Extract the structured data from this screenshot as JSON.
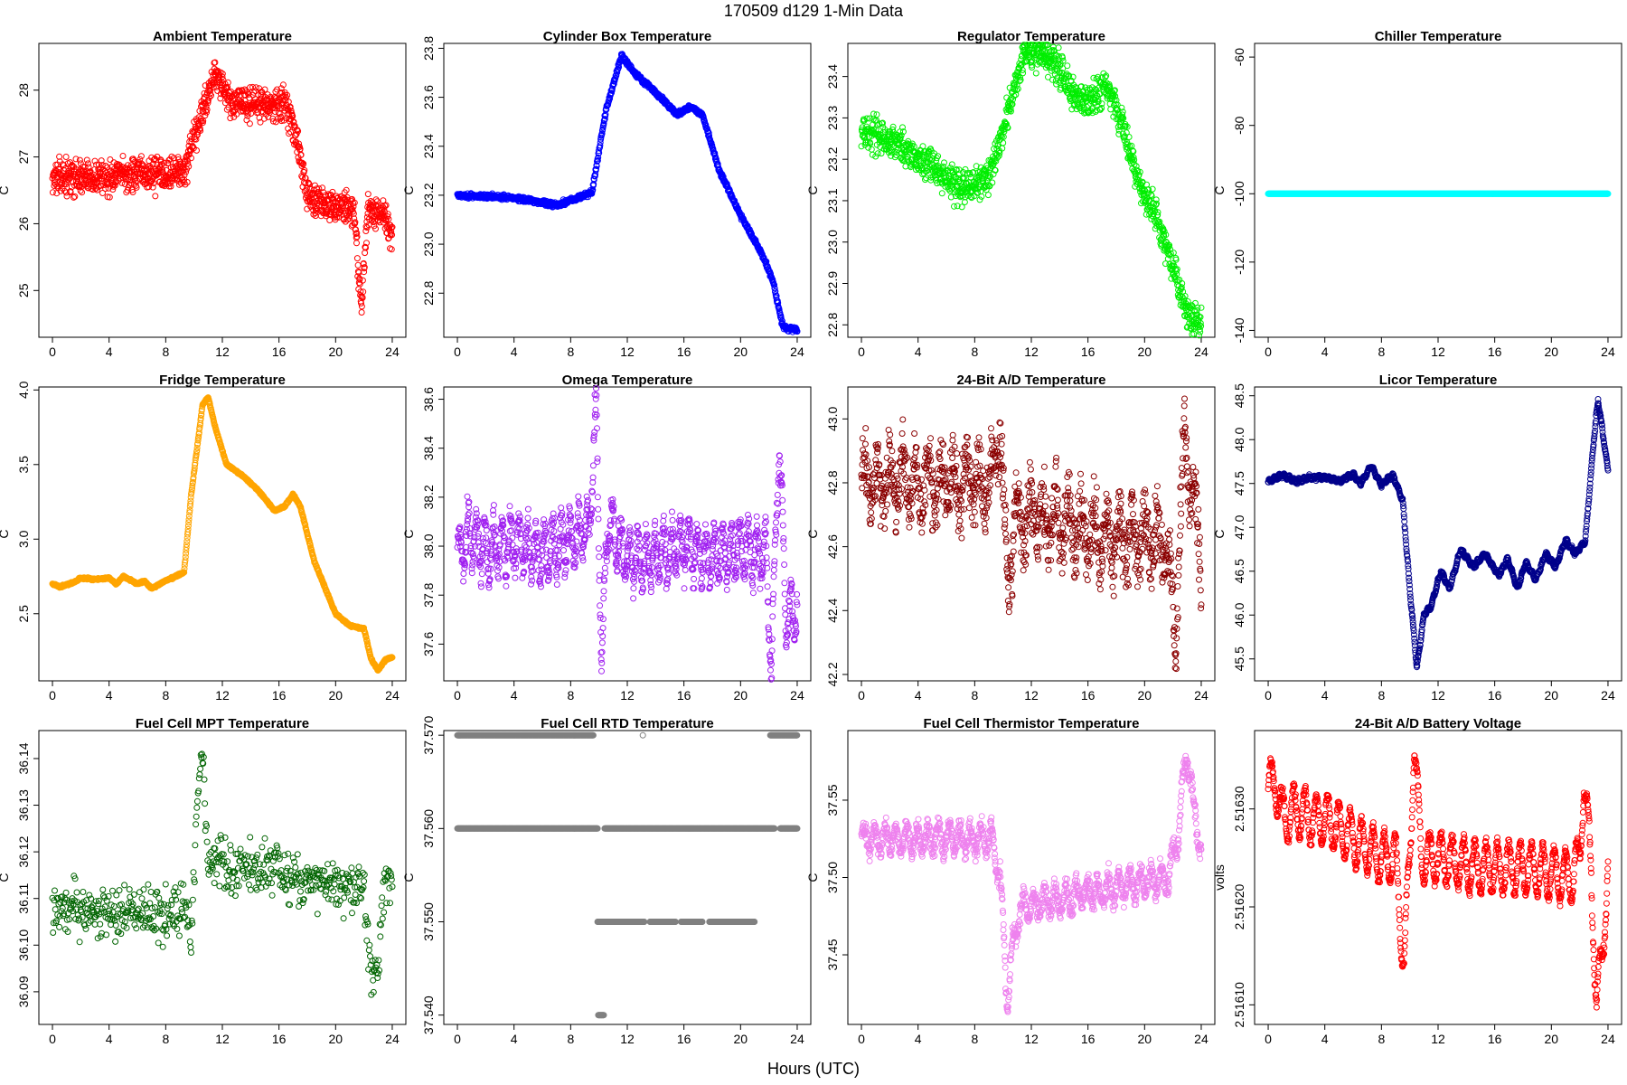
{
  "figure": {
    "title": "170509   d129   1-Min Data",
    "xlabel": "Hours (UTC)"
  },
  "chart_data": [
    {
      "type": "scatter",
      "title": "Ambient Temperature",
      "ylabel": "C",
      "color": "#ff0000",
      "xlim": [
        -0.96,
        24.96
      ],
      "ylim": [
        24.3,
        28.7
      ],
      "xticks": [
        0,
        4,
        8,
        12,
        16,
        20,
        24
      ],
      "yticks": [
        25,
        26,
        27,
        28
      ],
      "ytick_labels": [
        "25",
        "26",
        "27",
        "28"
      ],
      "anchors": [
        [
          0,
          26.7
        ],
        [
          4,
          26.7
        ],
        [
          9.4,
          26.8
        ],
        [
          10.5,
          27.6
        ],
        [
          11.5,
          28.3
        ],
        [
          12.5,
          27.8
        ],
        [
          16.5,
          27.8
        ],
        [
          17.3,
          27.2
        ],
        [
          18,
          26.4
        ],
        [
          21.3,
          26.2
        ],
        [
          21.8,
          24.8
        ],
        [
          22.3,
          26.2
        ],
        [
          23.5,
          26.1
        ],
        [
          24,
          25.8
        ]
      ],
      "noise": 0.15,
      "step": 0.02
    },
    {
      "type": "scatter",
      "title": "Cylinder Box Temperature",
      "ylabel": "C",
      "color": "#0000ff",
      "xlim": [
        -0.96,
        24.96
      ],
      "ylim": [
        22.62,
        23.82
      ],
      "xticks": [
        0,
        4,
        8,
        12,
        16,
        20,
        24
      ],
      "yticks": [
        22.8,
        23.0,
        23.2,
        23.4,
        23.6,
        23.8
      ],
      "ytick_labels": [
        "22.8",
        "23.0",
        "23.2",
        "23.4",
        "23.6",
        "23.8"
      ],
      "anchors": [
        [
          0,
          23.2
        ],
        [
          4,
          23.19
        ],
        [
          7,
          23.16
        ],
        [
          9.5,
          23.21
        ],
        [
          10.5,
          23.55
        ],
        [
          11.6,
          23.77
        ],
        [
          12.5,
          23.7
        ],
        [
          14,
          23.62
        ],
        [
          15.5,
          23.53
        ],
        [
          16.5,
          23.56
        ],
        [
          17.3,
          23.53
        ],
        [
          18.5,
          23.3
        ],
        [
          20,
          23.12
        ],
        [
          21.5,
          22.96
        ],
        [
          22.3,
          22.85
        ],
        [
          23,
          22.66
        ],
        [
          24,
          22.65
        ]
      ],
      "noise": 0.006,
      "step": 0.02
    },
    {
      "type": "scatter",
      "title": "Regulator Temperature",
      "ylabel": "C",
      "color": "#00ee00",
      "xlim": [
        -0.96,
        24.96
      ],
      "ylim": [
        22.77,
        23.48
      ],
      "xticks": [
        0,
        4,
        8,
        12,
        16,
        20,
        24
      ],
      "yticks": [
        22.8,
        22.9,
        23.0,
        23.1,
        23.2,
        23.3,
        23.4
      ],
      "ytick_labels": [
        "22.8",
        "22.9",
        "23.0",
        "23.1",
        "23.2",
        "23.3",
        "23.4"
      ],
      "anchors": [
        [
          0,
          23.27
        ],
        [
          2.5,
          23.24
        ],
        [
          5,
          23.18
        ],
        [
          7,
          23.13
        ],
        [
          9,
          23.15
        ],
        [
          10,
          23.27
        ],
        [
          11.5,
          23.46
        ],
        [
          12.5,
          23.46
        ],
        [
          14,
          23.42
        ],
        [
          15.3,
          23.34
        ],
        [
          16.3,
          23.34
        ],
        [
          17.3,
          23.38
        ],
        [
          18,
          23.33
        ],
        [
          19.5,
          23.15
        ],
        [
          21,
          23.05
        ],
        [
          22.3,
          22.9
        ],
        [
          23,
          22.82
        ],
        [
          24,
          22.8
        ]
      ],
      "noise": 0.025,
      "step": 0.02
    },
    {
      "type": "scatter",
      "title": "Chiller Temperature",
      "ylabel": "C",
      "color": "#00ffff",
      "xlim": [
        -0.96,
        24.96
      ],
      "ylim": [
        -142,
        -56
      ],
      "xticks": [
        0,
        4,
        8,
        12,
        16,
        20,
        24
      ],
      "yticks": [
        -140,
        -120,
        -100,
        -80,
        -60
      ],
      "ytick_labels": [
        "-140",
        "-120",
        "-100",
        "-80",
        "-60"
      ],
      "anchors": [
        [
          0,
          -100
        ],
        [
          24,
          -100
        ]
      ],
      "noise": 0,
      "step": 0.02
    },
    {
      "type": "scatter",
      "title": "Fridge Temperature",
      "ylabel": "C",
      "color": "#ffa500",
      "xlim": [
        -0.96,
        24.96
      ],
      "ylim": [
        2.05,
        4.02
      ],
      "xticks": [
        0,
        4,
        8,
        12,
        16,
        20,
        24
      ],
      "yticks": [
        2.5,
        3.0,
        3.5,
        4.0
      ],
      "ytick_labels": [
        "2.5",
        "3.0",
        "3.5",
        "4.0"
      ],
      "anchors": [
        [
          0,
          2.7
        ],
        [
          0.5,
          2.68
        ],
        [
          1.5,
          2.71
        ],
        [
          2,
          2.74
        ],
        [
          3,
          2.73
        ],
        [
          4,
          2.74
        ],
        [
          4.5,
          2.7
        ],
        [
          5,
          2.75
        ],
        [
          6,
          2.7
        ],
        [
          6.5,
          2.72
        ],
        [
          7,
          2.67
        ],
        [
          8,
          2.72
        ],
        [
          9.3,
          2.78
        ],
        [
          9.8,
          3.3
        ],
        [
          10.6,
          3.9
        ],
        [
          11,
          3.95
        ],
        [
          11.5,
          3.75
        ],
        [
          12.3,
          3.5
        ],
        [
          13.5,
          3.42
        ],
        [
          14.5,
          3.33
        ],
        [
          15.7,
          3.19
        ],
        [
          16.4,
          3.22
        ],
        [
          17,
          3.3
        ],
        [
          17.5,
          3.22
        ],
        [
          18.5,
          2.85
        ],
        [
          20,
          2.5
        ],
        [
          21,
          2.42
        ],
        [
          22,
          2.4
        ],
        [
          22.5,
          2.2
        ],
        [
          23,
          2.12
        ],
        [
          23.5,
          2.19
        ],
        [
          24,
          2.21
        ]
      ],
      "noise": 0.004,
      "step": 0.02
    },
    {
      "type": "scatter",
      "title": "Omega Temperature",
      "ylabel": "C",
      "color": "#a020f0",
      "xlim": [
        -0.96,
        24.96
      ],
      "ylim": [
        37.45,
        38.65
      ],
      "xticks": [
        0,
        4,
        8,
        12,
        16,
        20,
        24
      ],
      "yticks": [
        37.6,
        37.8,
        38.0,
        38.2,
        38.4,
        38.6
      ],
      "ytick_labels": [
        "37.6",
        "37.8",
        "38.0",
        "38.2",
        "38.4",
        "38.6"
      ],
      "anchors": [
        [
          0,
          37.95
        ],
        [
          0.8,
          38.05
        ],
        [
          2,
          37.98
        ],
        [
          4,
          38.02
        ],
        [
          6,
          37.97
        ],
        [
          8,
          38.03
        ],
        [
          9.3,
          38.08
        ],
        [
          9.8,
          38.55
        ],
        [
          10.2,
          37.5
        ],
        [
          10.6,
          38.12
        ],
        [
          12,
          37.95
        ],
        [
          14,
          37.95
        ],
        [
          16,
          38.0
        ],
        [
          18,
          37.95
        ],
        [
          20,
          38.0
        ],
        [
          21.8,
          37.95
        ],
        [
          22.2,
          37.5
        ],
        [
          22.7,
          38.45
        ],
        [
          23.2,
          37.7
        ],
        [
          24,
          37.75
        ]
      ],
      "noise": 0.04,
      "osc": [
        0.1,
        0.6
      ],
      "step": 0.02
    },
    {
      "type": "scatter",
      "title": "24-Bit A/D Temperature",
      "ylabel": "C",
      "color": "#8b0000",
      "xlim": [
        -0.96,
        24.96
      ],
      "ylim": [
        42.18,
        43.1
      ],
      "xticks": [
        0,
        4,
        8,
        12,
        16,
        20,
        24
      ],
      "yticks": [
        42.2,
        42.4,
        42.6,
        42.8,
        43.0
      ],
      "ytick_labels": [
        "42.2",
        "42.4",
        "42.6",
        "42.8",
        "43.0"
      ],
      "anchors": [
        [
          0,
          42.8
        ],
        [
          9.3,
          42.8
        ],
        [
          9.8,
          43.0
        ],
        [
          10.3,
          42.45
        ],
        [
          10.8,
          42.7
        ],
        [
          14,
          42.68
        ],
        [
          18,
          42.62
        ],
        [
          21.5,
          42.62
        ],
        [
          22.2,
          42.33
        ],
        [
          22.8,
          42.95
        ],
        [
          23.5,
          42.75
        ],
        [
          24,
          42.5
        ]
      ],
      "noise": 0.06,
      "osc": [
        0.08,
        0.9
      ],
      "step": 0.02
    },
    {
      "type": "scatter",
      "title": "Licor Temperature",
      "ylabel": "C",
      "color": "#00008b",
      "xlim": [
        -0.96,
        24.96
      ],
      "ylim": [
        45.25,
        48.6
      ],
      "xticks": [
        0,
        4,
        8,
        12,
        16,
        20,
        24
      ],
      "yticks": [
        45.5,
        46.0,
        46.5,
        47.0,
        47.5,
        48.0,
        48.5
      ],
      "ytick_labels": [
        "45.5",
        "46.0",
        "46.5",
        "47.0",
        "47.5",
        "48.0",
        "48.5"
      ],
      "anchors": [
        [
          0,
          47.52
        ],
        [
          1,
          47.6
        ],
        [
          2,
          47.52
        ],
        [
          3,
          47.57
        ],
        [
          4,
          47.57
        ],
        [
          5,
          47.53
        ],
        [
          6,
          47.6
        ],
        [
          6.5,
          47.5
        ],
        [
          7.3,
          47.7
        ],
        [
          8,
          47.48
        ],
        [
          8.8,
          47.6
        ],
        [
          9.5,
          47.3
        ],
        [
          10,
          46.3
        ],
        [
          10.5,
          45.4
        ],
        [
          11,
          46.0
        ],
        [
          11.5,
          46.1
        ],
        [
          12.2,
          46.5
        ],
        [
          12.8,
          46.3
        ],
        [
          13.6,
          46.75
        ],
        [
          14.5,
          46.55
        ],
        [
          15.3,
          46.7
        ],
        [
          16.3,
          46.45
        ],
        [
          16.9,
          46.65
        ],
        [
          17.6,
          46.3
        ],
        [
          18.2,
          46.6
        ],
        [
          18.9,
          46.4
        ],
        [
          19.6,
          46.7
        ],
        [
          20.3,
          46.55
        ],
        [
          21,
          46.85
        ],
        [
          21.7,
          46.7
        ],
        [
          22.4,
          46.85
        ],
        [
          23,
          48.0
        ],
        [
          23.3,
          48.45
        ],
        [
          23.7,
          48.0
        ],
        [
          24,
          47.65
        ]
      ],
      "noise": 0.01,
      "osc": [
        0.02,
        0.35
      ],
      "step": 0.02
    },
    {
      "type": "scatter",
      "title": "Fuel Cell MPT Temperature",
      "ylabel": "C",
      "color": "#006400",
      "xlim": [
        -0.96,
        24.96
      ],
      "ylim": [
        36.083,
        36.146
      ],
      "xticks": [
        0,
        4,
        8,
        12,
        16,
        20,
        24
      ],
      "yticks": [
        36.09,
        36.1,
        36.11,
        36.12,
        36.13,
        36.14
      ],
      "ytick_labels": [
        "36.09",
        "36.10",
        "36.11",
        "36.12",
        "36.13",
        "36.14"
      ],
      "anchors": [
        [
          0,
          36.108
        ],
        [
          9.5,
          36.107
        ],
        [
          9.8,
          36.098
        ],
        [
          10.2,
          36.13
        ],
        [
          10.6,
          36.14
        ],
        [
          11,
          36.118
        ],
        [
          22,
          36.112
        ],
        [
          22.5,
          36.092
        ],
        [
          23,
          36.095
        ],
        [
          23.5,
          36.115
        ],
        [
          24,
          36.112
        ]
      ],
      "noise": 0.0035,
      "step": 0.04
    },
    {
      "type": "scatter",
      "title": "Fuel Cell RTD Temperature",
      "ylabel": "C",
      "color": "#808080",
      "xlim": [
        -0.96,
        24.96
      ],
      "ylim": [
        37.539,
        37.5705
      ],
      "xticks": [
        0,
        4,
        8,
        12,
        16,
        20,
        24
      ],
      "yticks": [
        37.54,
        37.55,
        37.56,
        37.57
      ],
      "ytick_labels": [
        "37.540",
        "37.550",
        "37.560",
        "37.570"
      ],
      "levels": [
        {
          "y": 37.57,
          "ranges": [
            [
              0,
              9.6
            ],
            [
              13.1,
              13.1
            ],
            [
              22.1,
              24
            ]
          ]
        },
        {
          "y": 37.56,
          "ranges": [
            [
              0,
              9.9
            ],
            [
              10.4,
              22.4
            ],
            [
              22.8,
              24
            ]
          ]
        },
        {
          "y": 37.55,
          "ranges": [
            [
              9.9,
              13.2
            ],
            [
              13.6,
              15.4
            ],
            [
              15.8,
              17.3
            ],
            [
              17.8,
              21
            ]
          ]
        },
        {
          "y": 37.54,
          "ranges": [
            [
              9.95,
              10.35
            ]
          ]
        }
      ],
      "step": 0.03
    },
    {
      "type": "scatter",
      "title": "Fuel Cell Thermistor Temperature",
      "ylabel": "C",
      "color": "#ee82ee",
      "xlim": [
        -0.96,
        24.96
      ],
      "ylim": [
        37.405,
        37.595
      ],
      "xticks": [
        0,
        4,
        8,
        12,
        16,
        20,
        24
      ],
      "yticks": [
        37.45,
        37.5,
        37.55
      ],
      "ytick_labels": [
        "37.45",
        "37.50",
        "37.55"
      ],
      "anchors": [
        [
          0,
          37.525
        ],
        [
          9.2,
          37.525
        ],
        [
          9.8,
          37.5
        ],
        [
          10.3,
          37.42
        ],
        [
          10.6,
          37.45
        ],
        [
          11.2,
          37.48
        ],
        [
          16,
          37.49
        ],
        [
          21.7,
          37.5
        ],
        [
          22.4,
          37.53
        ],
        [
          23,
          37.585
        ],
        [
          23.5,
          37.54
        ],
        [
          24,
          37.52
        ]
      ],
      "noise": 0.004,
      "osc": [
        0.008,
        0.75
      ],
      "step": 0.02
    },
    {
      "type": "scatter",
      "title": "24-Bit A/D Battery Voltage",
      "ylabel": "volts",
      "color": "#ff0000",
      "xlim": [
        -0.96,
        24.96
      ],
      "ylim": [
        2.51608,
        2.51638
      ],
      "xticks": [
        0,
        4,
        8,
        12,
        16,
        20,
        24
      ],
      "yticks": [
        2.5161,
        2.5162,
        2.5163
      ],
      "ytick_labels": [
        "2.51610",
        "2.51620",
        "2.51630"
      ],
      "anchors": [
        [
          0,
          2.51632
        ],
        [
          0.5,
          2.51633
        ],
        [
          1,
          2.51629
        ],
        [
          2,
          2.5163
        ],
        [
          3,
          2.51629
        ],
        [
          4,
          2.51629
        ],
        [
          6,
          2.51627
        ],
        [
          8,
          2.51625
        ],
        [
          9,
          2.51625
        ],
        [
          9.6,
          2.51614
        ],
        [
          10,
          2.51625
        ],
        [
          10.3,
          2.51637
        ],
        [
          10.8,
          2.51625
        ],
        [
          12,
          2.51625
        ],
        [
          15,
          2.51624
        ],
        [
          18,
          2.51624
        ],
        [
          21.5,
          2.51623
        ],
        [
          22,
          2.51625
        ],
        [
          22.3,
          2.51633
        ],
        [
          22.8,
          2.51624
        ],
        [
          23.2,
          2.5161
        ],
        [
          23.6,
          2.51615
        ],
        [
          24,
          2.51625
        ]
      ],
      "noise": 4e-06,
      "osc": [
        2.5e-05,
        0.8
      ],
      "step": 0.02
    }
  ]
}
